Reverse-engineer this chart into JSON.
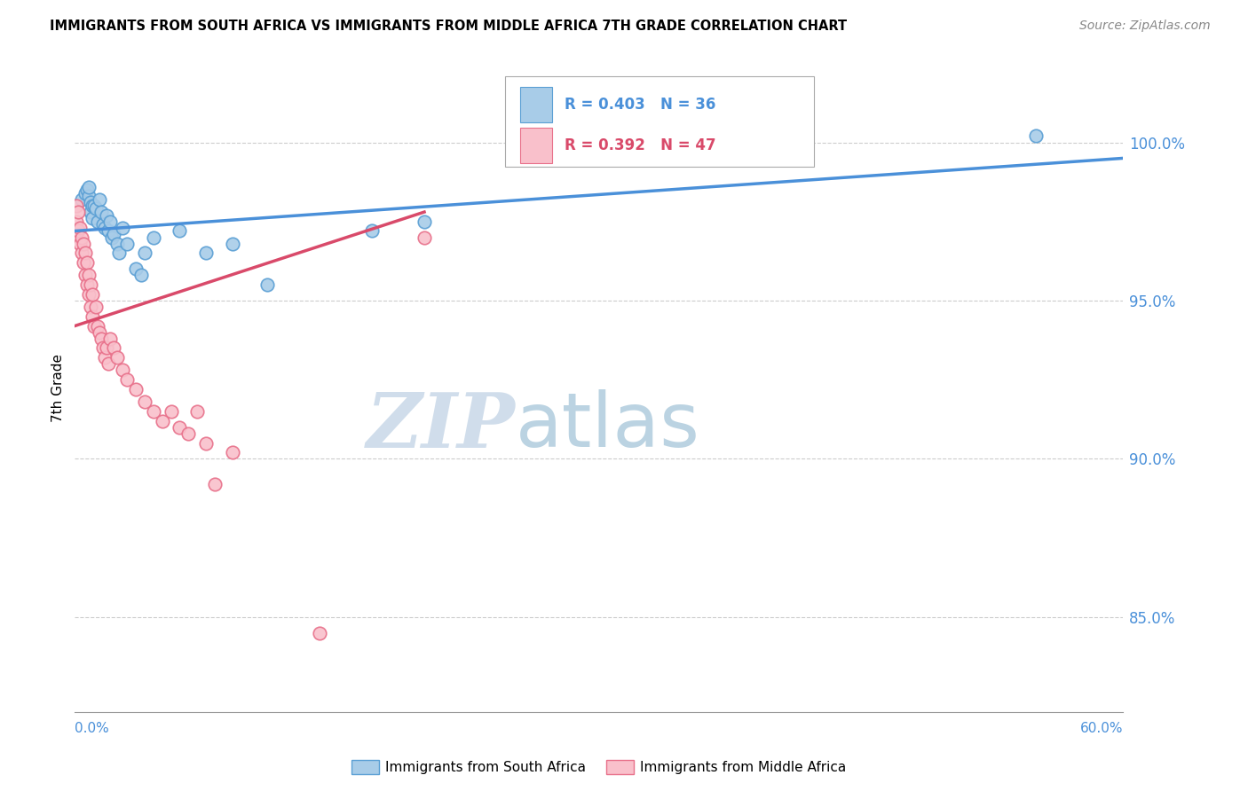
{
  "title": "IMMIGRANTS FROM SOUTH AFRICA VS IMMIGRANTS FROM MIDDLE AFRICA 7TH GRADE CORRELATION CHART",
  "source": "Source: ZipAtlas.com",
  "ylabel": "7th Grade",
  "xlim": [
    0.0,
    0.6
  ],
  "ylim": [
    82.0,
    102.5
  ],
  "watermark_zip": "ZIP",
  "watermark_atlas": "atlas",
  "legend_blue_r": "R = 0.403",
  "legend_blue_n": "N = 36",
  "legend_pink_r": "R = 0.392",
  "legend_pink_n": "N = 47",
  "color_blue_fill": "#a8cce8",
  "color_pink_fill": "#f9c0cb",
  "color_blue_edge": "#5a9fd4",
  "color_pink_edge": "#e8708a",
  "color_blue_line": "#4a90d9",
  "color_pink_line": "#d94a6a",
  "color_axis_label": "#4a90d9",
  "color_gridline": "#cccccc",
  "blue_x": [
    0.004,
    0.006,
    0.007,
    0.008,
    0.008,
    0.009,
    0.009,
    0.01,
    0.01,
    0.011,
    0.012,
    0.013,
    0.014,
    0.015,
    0.016,
    0.017,
    0.018,
    0.019,
    0.02,
    0.021,
    0.022,
    0.024,
    0.025,
    0.027,
    0.03,
    0.035,
    0.038,
    0.04,
    0.045,
    0.06,
    0.075,
    0.09,
    0.11,
    0.17,
    0.2,
    0.55
  ],
  "blue_y": [
    98.2,
    98.4,
    98.5,
    98.3,
    98.6,
    97.8,
    98.1,
    98.0,
    97.6,
    98.0,
    97.9,
    97.5,
    98.2,
    97.8,
    97.4,
    97.3,
    97.7,
    97.2,
    97.5,
    97.0,
    97.1,
    96.8,
    96.5,
    97.3,
    96.8,
    96.0,
    95.8,
    96.5,
    97.0,
    97.2,
    96.5,
    96.8,
    95.5,
    97.2,
    97.5,
    100.2
  ],
  "pink_x": [
    0.001,
    0.001,
    0.002,
    0.002,
    0.003,
    0.003,
    0.004,
    0.004,
    0.005,
    0.005,
    0.006,
    0.006,
    0.007,
    0.007,
    0.008,
    0.008,
    0.009,
    0.009,
    0.01,
    0.01,
    0.011,
    0.012,
    0.013,
    0.014,
    0.015,
    0.016,
    0.017,
    0.018,
    0.019,
    0.02,
    0.022,
    0.024,
    0.027,
    0.03,
    0.035,
    0.04,
    0.045,
    0.05,
    0.055,
    0.06,
    0.065,
    0.07,
    0.075,
    0.08,
    0.09,
    0.14,
    0.2
  ],
  "pink_y": [
    97.5,
    98.0,
    97.2,
    97.8,
    96.8,
    97.3,
    96.5,
    97.0,
    96.2,
    96.8,
    95.8,
    96.5,
    95.5,
    96.2,
    95.2,
    95.8,
    94.8,
    95.5,
    94.5,
    95.2,
    94.2,
    94.8,
    94.2,
    94.0,
    93.8,
    93.5,
    93.2,
    93.5,
    93.0,
    93.8,
    93.5,
    93.2,
    92.8,
    92.5,
    92.2,
    91.8,
    91.5,
    91.2,
    91.5,
    91.0,
    90.8,
    91.5,
    90.5,
    89.2,
    90.2,
    84.5,
    97.0
  ],
  "blue_trendline_x": [
    0.0,
    0.6
  ],
  "blue_trendline_y": [
    97.2,
    99.5
  ],
  "pink_trendline_x": [
    0.0,
    0.2
  ],
  "pink_trendline_y": [
    94.2,
    97.8
  ],
  "yticks": [
    85.0,
    90.0,
    95.0,
    100.0
  ],
  "ytick_labels": [
    "85.0%",
    "90.0%",
    "95.0%",
    "100.0%"
  ]
}
